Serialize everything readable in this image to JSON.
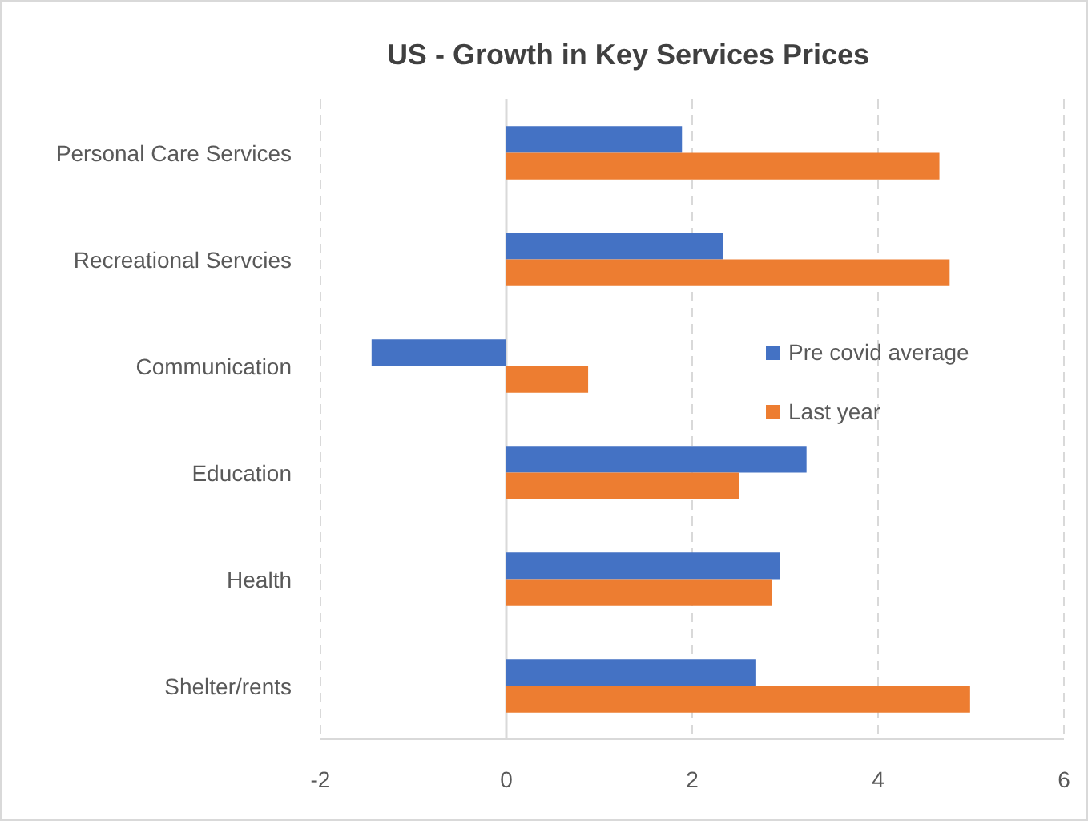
{
  "chart_data": {
    "type": "bar",
    "orientation": "horizontal",
    "title": "US - Growth in Key Services Prices",
    "categories": [
      "Personal Care Services",
      "Recreational Servcies",
      "Communication",
      "Education",
      "Health",
      "Shelter/rents"
    ],
    "series": [
      {
        "name": "Pre covid average",
        "color": "#4472c4",
        "values": [
          1.89,
          2.33,
          -1.45,
          3.23,
          2.94,
          2.68
        ]
      },
      {
        "name": "Last year",
        "color": "#ed7d31",
        "values": [
          4.66,
          4.77,
          0.88,
          2.5,
          2.86,
          4.99
        ]
      }
    ],
    "xlim": [
      -2,
      6
    ],
    "xticks": [
      -2,
      0,
      2,
      4,
      6
    ],
    "grid": "x",
    "legend": "right"
  }
}
